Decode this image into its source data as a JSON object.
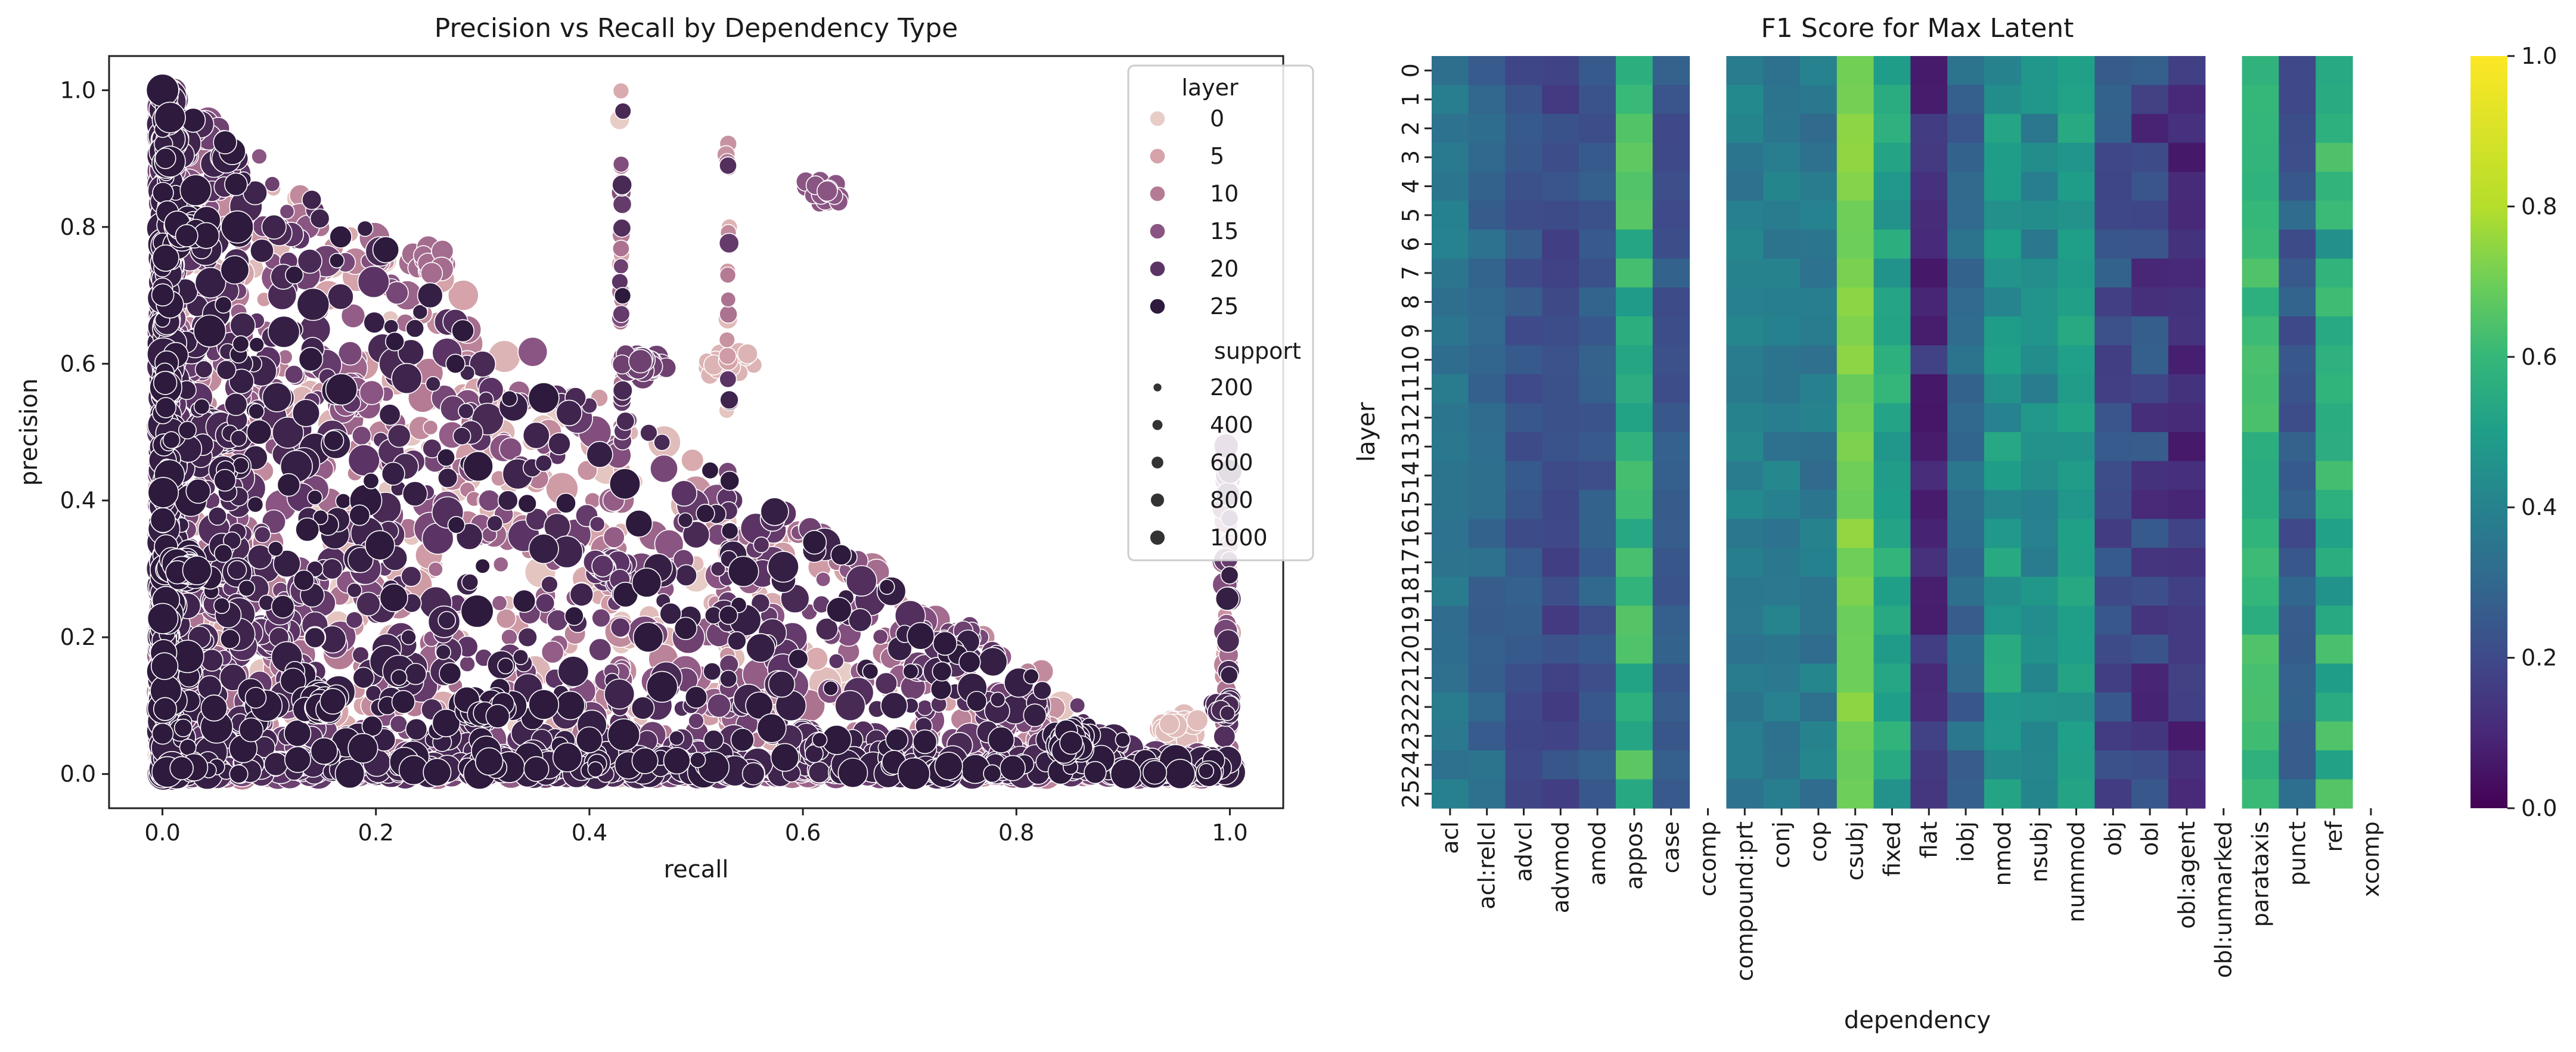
{
  "chart_data": [
    {
      "type": "scatter",
      "title": "Precision vs Recall by Dependency Type",
      "xlabel": "recall",
      "ylabel": "precision",
      "xlim": [
        -0.05,
        1.05
      ],
      "ylim": [
        -0.05,
        1.05
      ],
      "xticks": [
        0.0,
        0.2,
        0.4,
        0.6,
        0.8,
        1.0
      ],
      "yticks": [
        0.0,
        0.2,
        0.4,
        0.6,
        0.8,
        1.0
      ],
      "grid": false,
      "legend": {
        "placement": "top-right",
        "hue_title": "layer",
        "hue_entries": [
          {
            "label": "0",
            "color": "#e8cdc6"
          },
          {
            "label": "5",
            "color": "#d5a3a9"
          },
          {
            "label": "10",
            "color": "#b57b95"
          },
          {
            "label": "15",
            "color": "#8a5583"
          },
          {
            "label": "20",
            "color": "#5b3465"
          },
          {
            "label": "25",
            "color": "#2d1a3d"
          }
        ],
        "size_title": "support",
        "size_entries": [
          {
            "label": "200",
            "value": 200
          },
          {
            "label": "400",
            "value": 400
          },
          {
            "label": "600",
            "value": 600
          },
          {
            "label": "800",
            "value": 800
          },
          {
            "label": "1000",
            "value": 1000
          }
        ]
      },
      "clusters": [
        {
          "layer": 25,
          "recall": 0.02,
          "precision": 0.3,
          "support": 900
        },
        {
          "layer": 22,
          "recall": 0.05,
          "precision": 0.5,
          "support": 1000
        },
        {
          "layer": 25,
          "recall": 0.03,
          "precision": 0.8,
          "support": 700
        },
        {
          "layer": 20,
          "recall": 0.1,
          "precision": 0.2,
          "support": 800
        },
        {
          "layer": 25,
          "recall": 0.15,
          "precision": 0.1,
          "support": 700
        },
        {
          "layer": 15,
          "recall": 0.18,
          "precision": 0.55,
          "support": 600
        },
        {
          "layer": 12,
          "recall": 0.25,
          "precision": 0.75,
          "support": 500
        },
        {
          "layer": 5,
          "recall": 0.3,
          "precision": 0.55,
          "support": 500
        },
        {
          "layer": 25,
          "recall": 0.3,
          "precision": 0.1,
          "support": 600
        },
        {
          "layer": 20,
          "recall": 0.42,
          "precision": 0.3,
          "support": 500
        },
        {
          "layer": 18,
          "recall": 0.45,
          "precision": 0.6,
          "support": 500
        },
        {
          "layer": 3,
          "recall": 0.53,
          "precision": 0.6,
          "support": 300
        },
        {
          "layer": 22,
          "recall": 0.6,
          "precision": 0.05,
          "support": 600
        },
        {
          "layer": 15,
          "recall": 0.62,
          "precision": 0.85,
          "support": 300
        },
        {
          "layer": 18,
          "recall": 0.75,
          "precision": 0.2,
          "support": 300
        },
        {
          "layer": 25,
          "recall": 0.85,
          "precision": 0.05,
          "support": 600
        },
        {
          "layer": 2,
          "recall": 0.95,
          "precision": 0.07,
          "support": 500
        },
        {
          "layer": 22,
          "recall": 1.0,
          "precision": 0.1,
          "support": 400
        }
      ]
    },
    {
      "type": "heatmap",
      "title": "F1 Score for Max Latent",
      "xlabel": "dependency",
      "ylabel": "layer",
      "x": [
        "acl",
        "acl:relcl",
        "advcl",
        "advmod",
        "amod",
        "appos",
        "case",
        "ccomp",
        "compound:prt",
        "conj",
        "cop",
        "csubj",
        "fixed",
        "flat",
        "iobj",
        "nmod",
        "nsubj",
        "nummod",
        "obj",
        "obl",
        "obl:agent",
        "obl:unmarked",
        "parataxis",
        "punct",
        "ref",
        "xcomp"
      ],
      "y": [
        "0",
        "1",
        "2",
        "3",
        "4",
        "5",
        "6",
        "7",
        "8",
        "9",
        "10",
        "11",
        "12",
        "13",
        "14",
        "15",
        "16",
        "17",
        "18",
        "19",
        "20",
        "21",
        "22",
        "23",
        "24",
        "25"
      ],
      "colormap": "viridis",
      "vmin": 0.0,
      "vmax": 1.0,
      "colorbar_ticks": [
        0.0,
        0.2,
        0.4,
        0.6,
        0.8,
        1.0
      ],
      "missing_columns": [
        "ccomp",
        "obl:unmarked",
        "xcomp"
      ],
      "column_profiles": {
        "acl": [
          0.36,
          0.03
        ],
        "acl:relcl": [
          0.3,
          0.03
        ],
        "advcl": [
          0.23,
          0.03
        ],
        "advmod": [
          0.2,
          0.03
        ],
        "amod": [
          0.26,
          0.03
        ],
        "appos": [
          0.58,
          0.06
        ],
        "case": [
          0.24,
          0.03
        ],
        "compound:prt": [
          0.38,
          0.03
        ],
        "conj": [
          0.38,
          0.03
        ],
        "cop": [
          0.36,
          0.04
        ],
        "csubj": [
          0.72,
          0.02
        ],
        "fixed": [
          0.52,
          0.05
        ],
        "flat": [
          0.12,
          0.04
        ],
        "iobj": [
          0.3,
          0.04
        ],
        "nmod": [
          0.48,
          0.05
        ],
        "nsubj": [
          0.42,
          0.04
        ],
        "nummod": [
          0.5,
          0.03
        ],
        "obj": [
          0.22,
          0.04
        ],
        "obl": [
          0.18,
          0.06
        ],
        "obl:agent": [
          0.12,
          0.04
        ],
        "parataxis": [
          0.6,
          0.03
        ],
        "punct": [
          0.25,
          0.05
        ],
        "ref": [
          0.55,
          0.07
        ]
      }
    }
  ]
}
